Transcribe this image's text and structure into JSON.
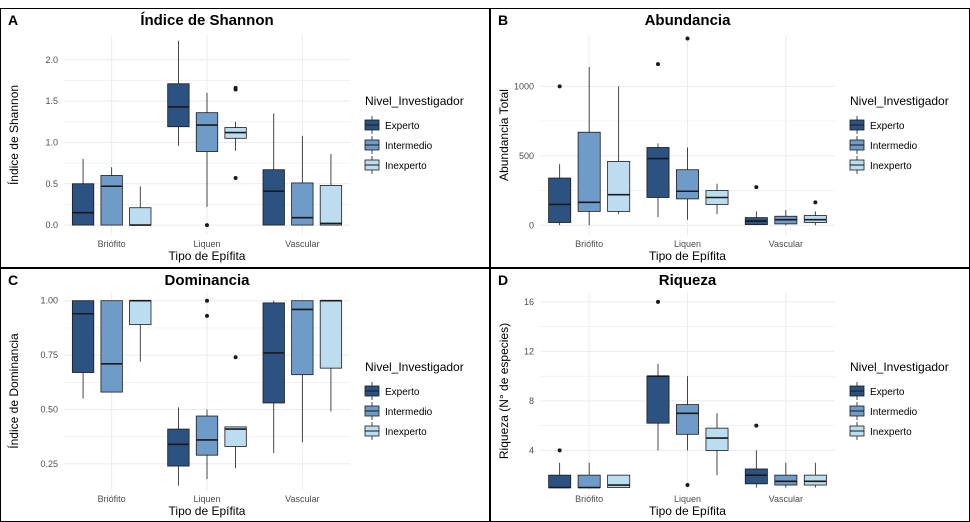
{
  "colors": {
    "Experto": "#2c5282",
    "Intermedio": "#6f9bc8",
    "Inexperto": "#bcdcf0",
    "outline": "#1a1a1a",
    "grid": "#ebebeb",
    "panel_border": "#000000"
  },
  "chart_data": [
    {
      "tag": "A",
      "type": "box",
      "title": "Índice de Shannon",
      "xlabel": "Tipo de Epífita",
      "ylabel": "Índice de Shannon",
      "categories": [
        "Briófito",
        "Liquen",
        "Vascular"
      ],
      "ylim": [
        -0.12,
        2.3
      ],
      "yticks": [
        0.0,
        0.5,
        1.0,
        1.5,
        2.0
      ],
      "ytick_labels": [
        "0.0",
        "0.5",
        "1.0",
        "1.5",
        "2.0"
      ],
      "legend_title": "Nivel_Investigador",
      "legend_position": "right",
      "series": [
        {
          "name": "Experto",
          "boxes": [
            {
              "min": 0.0,
              "q1": 0.0,
              "median": 0.15,
              "q3": 0.5,
              "max": 0.8,
              "outliers": []
            },
            {
              "min": 0.96,
              "q1": 1.19,
              "median": 1.43,
              "q3": 1.71,
              "max": 2.23,
              "outliers": []
            },
            {
              "min": 0.0,
              "q1": 0.0,
              "median": 0.41,
              "q3": 0.67,
              "max": 1.35,
              "outliers": []
            }
          ]
        },
        {
          "name": "Intermedio",
          "boxes": [
            {
              "min": 0.0,
              "q1": 0.0,
              "median": 0.47,
              "q3": 0.6,
              "max": 0.7,
              "outliers": []
            },
            {
              "min": 0.22,
              "q1": 0.89,
              "median": 1.21,
              "q3": 1.36,
              "max": 1.6,
              "outliers": [
                0.0
              ]
            },
            {
              "min": 0.0,
              "q1": 0.0,
              "median": 0.09,
              "q3": 0.51,
              "max": 1.08,
              "outliers": []
            }
          ]
        },
        {
          "name": "Inexperto",
          "boxes": [
            {
              "min": 0.0,
              "q1": 0.0,
              "median": 0.0,
              "q3": 0.21,
              "max": 0.47,
              "outliers": []
            },
            {
              "min": 0.9,
              "q1": 1.05,
              "median": 1.12,
              "q3": 1.18,
              "max": 1.25,
              "outliers": [
                1.64,
                1.66,
                0.57
              ]
            },
            {
              "min": 0.0,
              "q1": 0.0,
              "median": 0.02,
              "q3": 0.48,
              "max": 0.86,
              "outliers": []
            }
          ]
        }
      ]
    },
    {
      "tag": "B",
      "type": "box",
      "title": "Abundancia",
      "xlabel": "Tipo de Epífita",
      "ylabel": "Abundancia Total",
      "categories": [
        "Briófito",
        "Liquen",
        "Vascular"
      ],
      "ylim": [
        -70,
        1370
      ],
      "yticks": [
        0,
        500,
        1000
      ],
      "ytick_labels": [
        "0",
        "500",
        "1000"
      ],
      "legend_title": "Nivel_Investigador",
      "legend_position": "right",
      "series": [
        {
          "name": "Experto",
          "boxes": [
            {
              "min": 0,
              "q1": 20,
              "median": 150,
              "q3": 340,
              "max": 440,
              "outliers": [
                1000
              ]
            },
            {
              "min": 60,
              "q1": 200,
              "median": 480,
              "q3": 560,
              "max": 590,
              "outliers": [
                1160
              ]
            },
            {
              "min": 0,
              "q1": 5,
              "median": 30,
              "q3": 55,
              "max": 100,
              "outliers": [
                275
              ]
            }
          ]
        },
        {
          "name": "Intermedio",
          "boxes": [
            {
              "min": 0,
              "q1": 100,
              "median": 165,
              "q3": 670,
              "max": 1140,
              "outliers": []
            },
            {
              "min": 40,
              "q1": 190,
              "median": 245,
              "q3": 400,
              "max": 560,
              "outliers": [
                1345
              ]
            },
            {
              "min": 0,
              "q1": 10,
              "median": 40,
              "q3": 65,
              "max": 110,
              "outliers": []
            }
          ]
        },
        {
          "name": "Inexperto",
          "boxes": [
            {
              "min": 80,
              "q1": 100,
              "median": 220,
              "q3": 460,
              "max": 1000,
              "outliers": []
            },
            {
              "min": 80,
              "q1": 150,
              "median": 200,
              "q3": 250,
              "max": 300,
              "outliers": []
            },
            {
              "min": 0,
              "q1": 20,
              "median": 40,
              "q3": 70,
              "max": 100,
              "outliers": [
                165
              ]
            }
          ]
        }
      ]
    },
    {
      "tag": "C",
      "type": "box",
      "title": "Dominancia",
      "xlabel": "Tipo de Epífita",
      "ylabel": "Índice de Dominancia",
      "categories": [
        "Briófito",
        "Liquen",
        "Vascular"
      ],
      "ylim": [
        0.13,
        1.04
      ],
      "yticks": [
        0.25,
        0.5,
        0.75,
        1.0
      ],
      "ytick_labels": [
        "0.25",
        "0.50",
        "0.75",
        "1.00"
      ],
      "legend_title": "Nivel_Investigador",
      "legend_position": "right",
      "series": [
        {
          "name": "Experto",
          "boxes": [
            {
              "min": 0.55,
              "q1": 0.67,
              "median": 0.94,
              "q3": 1.0,
              "max": 1.0,
              "outliers": []
            },
            {
              "min": 0.15,
              "q1": 0.24,
              "median": 0.34,
              "q3": 0.41,
              "max": 0.51,
              "outliers": []
            },
            {
              "min": 0.3,
              "q1": 0.53,
              "median": 0.76,
              "q3": 0.99,
              "max": 1.0,
              "outliers": []
            }
          ]
        },
        {
          "name": "Intermedio",
          "boxes": [
            {
              "min": 0.58,
              "q1": 0.58,
              "median": 0.71,
              "q3": 1.0,
              "max": 1.0,
              "outliers": []
            },
            {
              "min": 0.18,
              "q1": 0.29,
              "median": 0.36,
              "q3": 0.47,
              "max": 0.5,
              "outliers": [
                1.0,
                0.93
              ]
            },
            {
              "min": 0.35,
              "q1": 0.66,
              "median": 0.96,
              "q3": 1.0,
              "max": 1.0,
              "outliers": []
            }
          ]
        },
        {
          "name": "Inexperto",
          "boxes": [
            {
              "min": 0.72,
              "q1": 0.89,
              "median": 1.0,
              "q3": 1.0,
              "max": 1.0,
              "outliers": []
            },
            {
              "min": 0.23,
              "q1": 0.33,
              "median": 0.41,
              "q3": 0.42,
              "max": 0.42,
              "outliers": [
                0.74
              ]
            },
            {
              "min": 0.49,
              "q1": 0.69,
              "median": 1.0,
              "q3": 1.0,
              "max": 1.0,
              "outliers": []
            }
          ]
        }
      ]
    },
    {
      "tag": "D",
      "type": "box",
      "title": "Riqueza",
      "xlabel": "Tipo de Epífita",
      "ylabel": "Riqueza (N° de especies)",
      "categories": [
        "Briófito",
        "Liquen",
        "Vascular"
      ],
      "ylim": [
        0.8,
        16.8
      ],
      "yticks": [
        4,
        8,
        12,
        16
      ],
      "ytick_labels": [
        "4",
        "8",
        "12",
        "16"
      ],
      "legend_title": "Nivel_Investigador",
      "legend_position": "right",
      "series": [
        {
          "name": "Experto",
          "boxes": [
            {
              "min": 1,
              "q1": 1,
              "median": 1,
              "q3": 2,
              "max": 3,
              "outliers": [
                4
              ]
            },
            {
              "min": 4,
              "q1": 6.2,
              "median": 10,
              "q3": 10,
              "max": 11,
              "outliers": [
                16
              ]
            },
            {
              "min": 1,
              "q1": 1.3,
              "median": 2,
              "q3": 2.5,
              "max": 4,
              "outliers": [
                6
              ]
            }
          ]
        },
        {
          "name": "Intermedio",
          "boxes": [
            {
              "min": 1,
              "q1": 1,
              "median": 1,
              "q3": 2,
              "max": 3,
              "outliers": []
            },
            {
              "min": 4,
              "q1": 5.3,
              "median": 7,
              "q3": 7.7,
              "max": 10,
              "outliers": [
                1.2
              ]
            },
            {
              "min": 1,
              "q1": 1.2,
              "median": 1.5,
              "q3": 2,
              "max": 3,
              "outliers": []
            }
          ]
        },
        {
          "name": "Inexperto",
          "boxes": [
            {
              "min": 1,
              "q1": 1,
              "median": 1.2,
              "q3": 2,
              "max": 2,
              "outliers": []
            },
            {
              "min": 2,
              "q1": 4,
              "median": 5,
              "q3": 5.8,
              "max": 7,
              "outliers": []
            },
            {
              "min": 1,
              "q1": 1.2,
              "median": 1.5,
              "q3": 2,
              "max": 3,
              "outliers": []
            }
          ]
        }
      ]
    }
  ]
}
